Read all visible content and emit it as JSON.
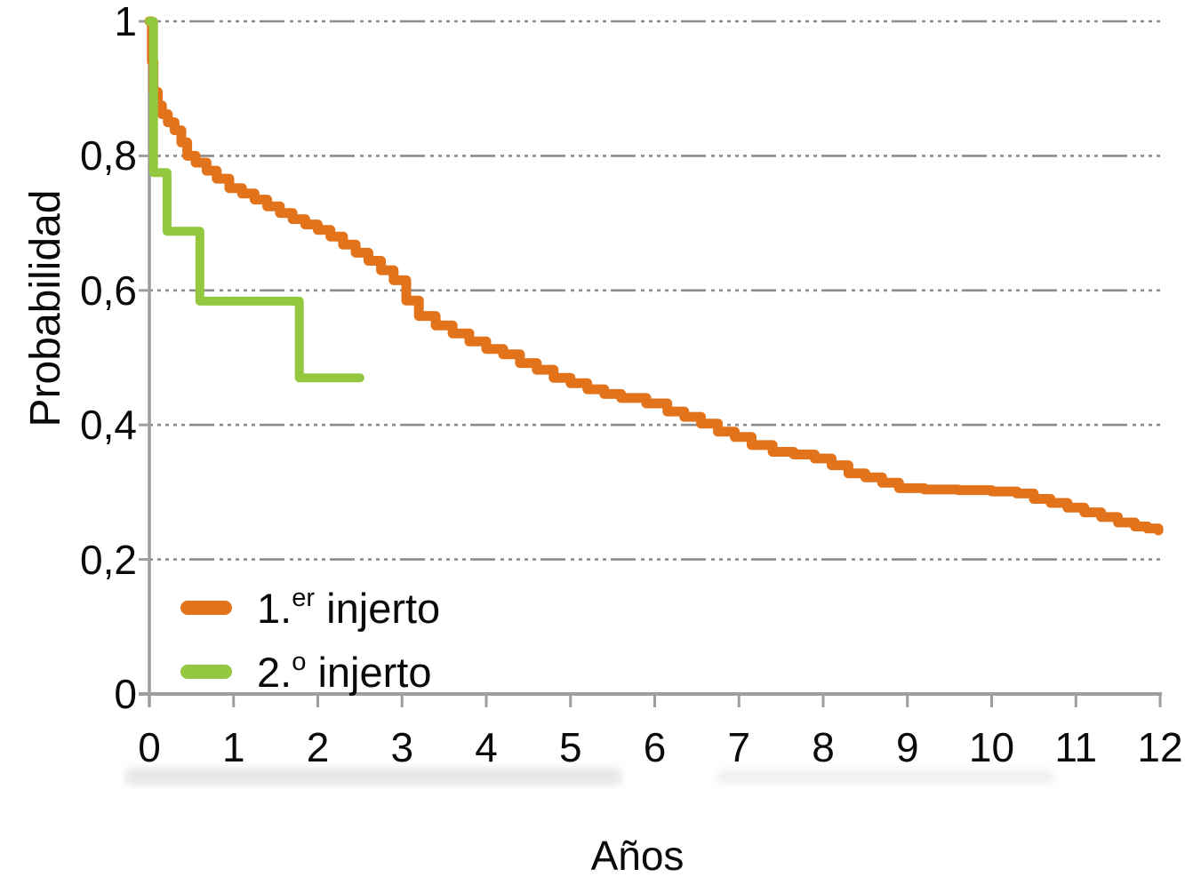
{
  "chart_data": {
    "type": "line",
    "subtype": "kaplan-meier-step",
    "title": "",
    "xlabel": "Años",
    "ylabel": "Probabilidad",
    "xlim": [
      0,
      12
    ],
    "ylim": [
      0,
      1
    ],
    "x_ticks": [
      0,
      1,
      2,
      3,
      4,
      5,
      6,
      7,
      8,
      9,
      10,
      11,
      12
    ],
    "y_ticks": [
      {
        "value": 1,
        "label": "1"
      },
      {
        "value": 0.8,
        "label": "0,8"
      },
      {
        "value": 0.6,
        "label": "0,6"
      },
      {
        "value": 0.4,
        "label": "0,4"
      },
      {
        "value": 0.2,
        "label": "0,2"
      },
      {
        "value": 0,
        "label": "0"
      }
    ],
    "grid": "horizontal-dashed",
    "legend_position": "inside-lower-left",
    "colors": {
      "grid": "#8c8c8c",
      "axis": "#9e9e9e",
      "text": "#0a0a0a"
    },
    "series": [
      {
        "name": "1.er injerto",
        "color": "#E2731B",
        "points": [
          [
            0.0,
            1.0
          ],
          [
            0.03,
            0.94
          ],
          [
            0.05,
            0.895
          ],
          [
            0.1,
            0.875
          ],
          [
            0.15,
            0.862
          ],
          [
            0.22,
            0.85
          ],
          [
            0.3,
            0.838
          ],
          [
            0.38,
            0.82
          ],
          [
            0.45,
            0.8
          ],
          [
            0.55,
            0.79
          ],
          [
            0.68,
            0.778
          ],
          [
            0.8,
            0.766
          ],
          [
            0.95,
            0.752
          ],
          [
            1.1,
            0.744
          ],
          [
            1.25,
            0.735
          ],
          [
            1.4,
            0.725
          ],
          [
            1.55,
            0.715
          ],
          [
            1.7,
            0.706
          ],
          [
            1.85,
            0.698
          ],
          [
            2.0,
            0.69
          ],
          [
            2.15,
            0.68
          ],
          [
            2.3,
            0.668
          ],
          [
            2.45,
            0.656
          ],
          [
            2.6,
            0.644
          ],
          [
            2.75,
            0.63
          ],
          [
            2.9,
            0.615
          ],
          [
            3.05,
            0.585
          ],
          [
            3.2,
            0.562
          ],
          [
            3.4,
            0.548
          ],
          [
            3.6,
            0.536
          ],
          [
            3.8,
            0.524
          ],
          [
            4.0,
            0.513
          ],
          [
            4.2,
            0.505
          ],
          [
            4.4,
            0.492
          ],
          [
            4.6,
            0.482
          ],
          [
            4.8,
            0.47
          ],
          [
            5.0,
            0.462
          ],
          [
            5.2,
            0.453
          ],
          [
            5.4,
            0.446
          ],
          [
            5.6,
            0.44
          ],
          [
            5.9,
            0.432
          ],
          [
            6.15,
            0.42
          ],
          [
            6.35,
            0.412
          ],
          [
            6.55,
            0.402
          ],
          [
            6.75,
            0.39
          ],
          [
            6.95,
            0.382
          ],
          [
            7.15,
            0.37
          ],
          [
            7.4,
            0.36
          ],
          [
            7.65,
            0.356
          ],
          [
            7.9,
            0.35
          ],
          [
            8.1,
            0.34
          ],
          [
            8.3,
            0.328
          ],
          [
            8.5,
            0.322
          ],
          [
            8.7,
            0.314
          ],
          [
            8.9,
            0.306
          ],
          [
            9.2,
            0.304
          ],
          [
            9.6,
            0.303
          ],
          [
            10.0,
            0.301
          ],
          [
            10.3,
            0.298
          ],
          [
            10.5,
            0.29
          ],
          [
            10.7,
            0.284
          ],
          [
            10.9,
            0.277
          ],
          [
            11.1,
            0.27
          ],
          [
            11.3,
            0.263
          ],
          [
            11.5,
            0.255
          ],
          [
            11.7,
            0.249
          ],
          [
            11.85,
            0.246
          ],
          [
            11.98,
            0.243
          ]
        ]
      },
      {
        "name": "2.º injerto",
        "color": "#93C83E",
        "points": [
          [
            0.0,
            1.0
          ],
          [
            0.05,
            0.775
          ],
          [
            0.21,
            0.688
          ],
          [
            0.6,
            0.584
          ],
          [
            1.78,
            0.47
          ],
          [
            2.5,
            0.47
          ]
        ]
      }
    ]
  },
  "legend": {
    "items": [
      {
        "prefix": "1.",
        "sup": "er",
        "rest": " injerto"
      },
      {
        "prefix": "2.",
        "sup": "o",
        "rest": " injerto"
      }
    ]
  }
}
